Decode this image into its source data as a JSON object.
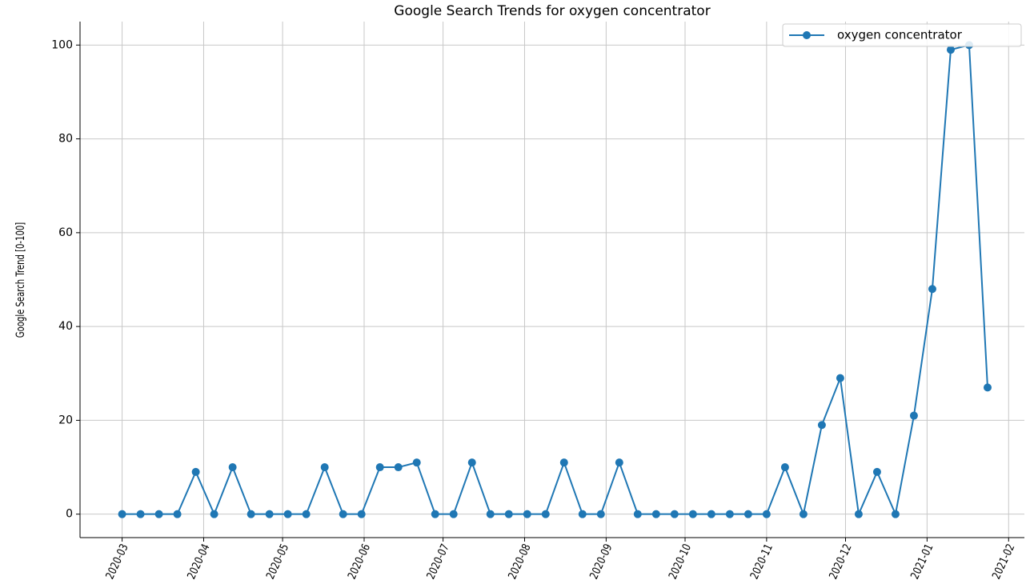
{
  "chart_data": {
    "type": "line",
    "title": "Google Search Trends for oxygen concentrator",
    "ylabel": "Google Search Trend [0-100]",
    "x": [
      "2020-03-01",
      "2020-03-08",
      "2020-03-15",
      "2020-03-22",
      "2020-03-29",
      "2020-04-05",
      "2020-04-12",
      "2020-04-19",
      "2020-04-26",
      "2020-05-03",
      "2020-05-10",
      "2020-05-17",
      "2020-05-24",
      "2020-05-31",
      "2020-06-07",
      "2020-06-14",
      "2020-06-21",
      "2020-06-28",
      "2020-07-05",
      "2020-07-12",
      "2020-07-19",
      "2020-07-26",
      "2020-08-02",
      "2020-08-09",
      "2020-08-16",
      "2020-08-23",
      "2020-08-30",
      "2020-09-06",
      "2020-09-13",
      "2020-09-20",
      "2020-09-27",
      "2020-10-04",
      "2020-10-11",
      "2020-10-18",
      "2020-10-25",
      "2020-11-01",
      "2020-11-08",
      "2020-11-15",
      "2020-11-22",
      "2020-11-29",
      "2020-12-06",
      "2020-12-13",
      "2020-12-20",
      "2020-12-27",
      "2021-01-03",
      "2021-01-10",
      "2021-01-17",
      "2021-01-24"
    ],
    "series": [
      {
        "name": "oxygen concentrator",
        "color": "#1f77b4",
        "values": [
          0,
          0,
          0,
          0,
          9,
          0,
          10,
          0,
          0,
          0,
          0,
          10,
          0,
          0,
          10,
          10,
          11,
          0,
          0,
          11,
          0,
          0,
          0,
          0,
          11,
          0,
          0,
          11,
          0,
          0,
          0,
          0,
          0,
          0,
          0,
          0,
          10,
          0,
          19,
          29,
          0,
          9,
          0,
          21,
          48,
          99,
          100,
          27
        ]
      }
    ],
    "xlim": [
      "2020-02-14",
      "2021-02-07"
    ],
    "xticks": [
      {
        "value": "2020-03-01",
        "label": "2020-03"
      },
      {
        "value": "2020-04-01",
        "label": "2020-04"
      },
      {
        "value": "2020-05-01",
        "label": "2020-05"
      },
      {
        "value": "2020-06-01",
        "label": "2020-06"
      },
      {
        "value": "2020-07-01",
        "label": "2020-07"
      },
      {
        "value": "2020-08-01",
        "label": "2020-08"
      },
      {
        "value": "2020-09-01",
        "label": "2020-09"
      },
      {
        "value": "2020-10-01",
        "label": "2020-10"
      },
      {
        "value": "2020-11-01",
        "label": "2020-11"
      },
      {
        "value": "2020-12-01",
        "label": "2020-12"
      },
      {
        "value": "2021-01-01",
        "label": "2021-01"
      },
      {
        "value": "2021-02-01",
        "label": "2021-02"
      }
    ],
    "ylim": [
      -5,
      105
    ],
    "yticks": [
      0,
      20,
      40,
      60,
      80,
      100
    ],
    "grid": true,
    "legend": "upper right"
  }
}
